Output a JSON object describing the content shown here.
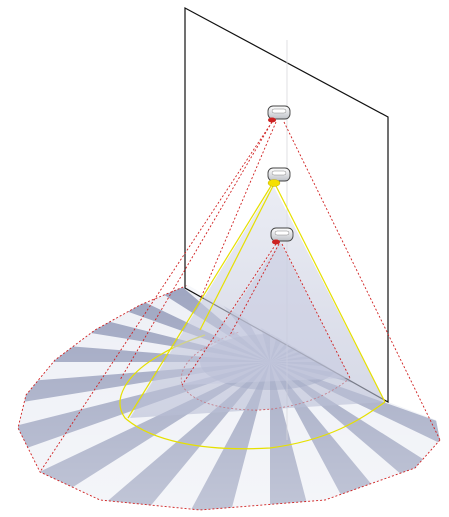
{
  "diagram": {
    "kind": "motion-sensor-detection-range",
    "sensor_count": 3,
    "sensors": [
      {
        "name": "sensor-top",
        "beam_color": "#cc2222",
        "lens_color": "#cc2222"
      },
      {
        "name": "sensor-middle",
        "beam_color": "#e8e000",
        "lens_color": "#f5e000"
      },
      {
        "name": "sensor-bottom",
        "beam_color": "#cc2222",
        "lens_color": "#cc2222"
      }
    ],
    "colors": {
      "wall_stroke": "#111111",
      "zone_dark": "#5e6a96",
      "zone_light": "#e9ecf5",
      "top_beam": "#d02020",
      "middle_beam": "#e6e000",
      "bottom_beam": "#d02020"
    }
  }
}
